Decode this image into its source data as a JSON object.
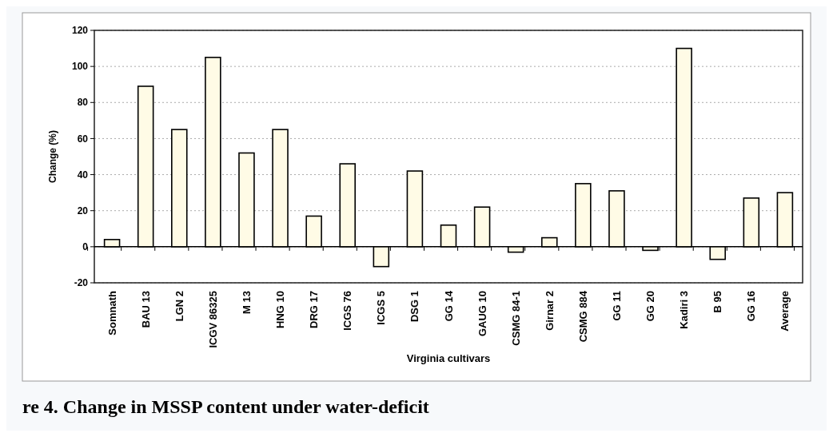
{
  "chart_data": {
    "type": "bar",
    "xlabel": "Virginia cultivars",
    "ylabel": "Change (%)",
    "categories": [
      "Somnath",
      "BAU 13",
      "LGN 2",
      "ICGV 86325",
      "M 13",
      "HNG 10",
      "DRG 17",
      "ICGS 76",
      "ICGS 5",
      "DSG 1",
      "GG 14",
      "GAUG 10",
      "CSMG 84-1",
      "Girnar 2",
      "CSMG 884",
      "GG 11",
      "GG 20",
      "Kadiri 3",
      "B 95",
      "GG 16",
      "Average"
    ],
    "values": [
      4,
      89,
      65,
      105,
      52,
      65,
      17,
      46,
      -11,
      42,
      12,
      22,
      -3,
      5,
      35,
      31,
      -2,
      110,
      -7,
      27,
      30
    ],
    "color": "#fffbe6",
    "ylim": [
      -20,
      120
    ],
    "yticks": [
      -20,
      0,
      20,
      40,
      60,
      80,
      100,
      120
    ],
    "grid": "y",
    "annotations": [
      "re 4. Change in MSSP content under water-deficit"
    ]
  }
}
